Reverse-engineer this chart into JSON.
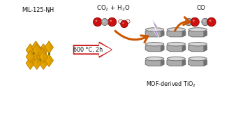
{
  "background_color": "#ffffff",
  "mol125_label": "MIL-125-NH",
  "mol125_sub": "2",
  "mof_label": "MOF-derived TiO",
  "mof_sub": "2",
  "arrow_label": "600 °C, 2h",
  "co2_label": "CO",
  "co2_sub": "2",
  "co2_rest": " + H",
  "co2_sub2": "2",
  "co2_rest2": "O",
  "co_label": "CO",
  "mof_color_yellow": "#E8A800",
  "mof_color_yellow_edge": "#B07800",
  "mof_color_green": "#2E7D2E",
  "tio2_color": "#ABABAB",
  "tio2_dark": "#707070",
  "tio2_top": "#C8C8C8",
  "tio2_light": "#D8D8D8",
  "red_atom": "#CC1111",
  "gray_atom": "#AAAAAA",
  "red_dark": "#880000",
  "gray_dark": "#666666",
  "white_atom": "#F0F0F0",
  "arrow_red": "#CC2222",
  "arrow_orange": "#CC5500",
  "lightning_color": "#AA88CC",
  "text_color": "#111111"
}
